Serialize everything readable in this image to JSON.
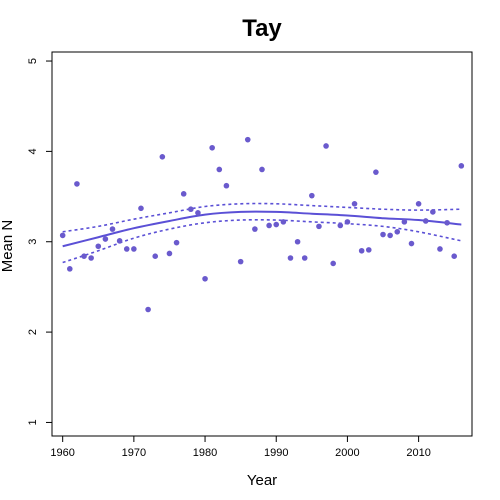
{
  "chart_data": {
    "type": "scatter",
    "title": "Tay",
    "xlabel": "Year",
    "ylabel": "Mean N",
    "xlim": [
      1958.5,
      2017.5
    ],
    "ylim": [
      0.85,
      5.1
    ],
    "x_ticks": [
      1960,
      1970,
      1980,
      1990,
      2000,
      2010
    ],
    "y_ticks": [
      1,
      2,
      3,
      4,
      5
    ],
    "grid": false,
    "point_color": "#6a5acd",
    "line_color": "#5b50d6",
    "points": {
      "x": [
        1960,
        1961,
        1962,
        1963,
        1964,
        1965,
        1966,
        1967,
        1968,
        1969,
        1970,
        1971,
        1972,
        1973,
        1974,
        1975,
        1976,
        1977,
        1978,
        1979,
        1980,
        1981,
        1982,
        1983,
        1985,
        1986,
        1987,
        1988,
        1989,
        1990,
        1991,
        1992,
        1993,
        1994,
        1995,
        1996,
        1997,
        1998,
        1999,
        2000,
        2001,
        2002,
        2003,
        2004,
        2005,
        2006,
        2007,
        2008,
        2009,
        2010,
        2011,
        2012,
        2013,
        2014,
        2015,
        2016
      ],
      "y": [
        3.07,
        2.7,
        3.64,
        2.84,
        2.82,
        2.95,
        3.03,
        3.14,
        3.01,
        2.92,
        2.92,
        3.37,
        2.25,
        2.84,
        3.94,
        2.87,
        2.99,
        3.53,
        3.36,
        3.32,
        2.59,
        4.04,
        3.8,
        3.62,
        2.78,
        4.13,
        3.14,
        3.8,
        3.18,
        3.19,
        3.22,
        2.82,
        3.0,
        2.82,
        3.51,
        3.17,
        4.06,
        2.76,
        3.18,
        3.22,
        3.42,
        2.9,
        2.91,
        3.77,
        3.08,
        3.07,
        3.11,
        3.22,
        2.98,
        3.42,
        3.23,
        3.33,
        2.92,
        3.21,
        2.84,
        3.84
      ]
    },
    "fit": {
      "x": [
        1960,
        1965,
        1970,
        1975,
        1980,
        1985,
        1990,
        1995,
        2000,
        2005,
        2010,
        2016
      ],
      "y": [
        2.95,
        3.05,
        3.15,
        3.23,
        3.3,
        3.33,
        3.33,
        3.31,
        3.29,
        3.26,
        3.24,
        3.19
      ]
    },
    "ci_upper": {
      "x": [
        1960,
        1965,
        1970,
        1975,
        1980,
        1985,
        1990,
        1995,
        2000,
        2005,
        2010,
        2016
      ],
      "y": [
        3.11,
        3.17,
        3.25,
        3.32,
        3.39,
        3.42,
        3.42,
        3.4,
        3.38,
        3.36,
        3.35,
        3.36
      ]
    },
    "ci_lower": {
      "x": [
        1960,
        1965,
        1970,
        1975,
        1980,
        1985,
        1990,
        1995,
        2000,
        2005,
        2010,
        2016
      ],
      "y": [
        2.77,
        2.9,
        3.04,
        3.14,
        3.21,
        3.24,
        3.24,
        3.22,
        3.2,
        3.17,
        3.11,
        3.01
      ]
    }
  }
}
